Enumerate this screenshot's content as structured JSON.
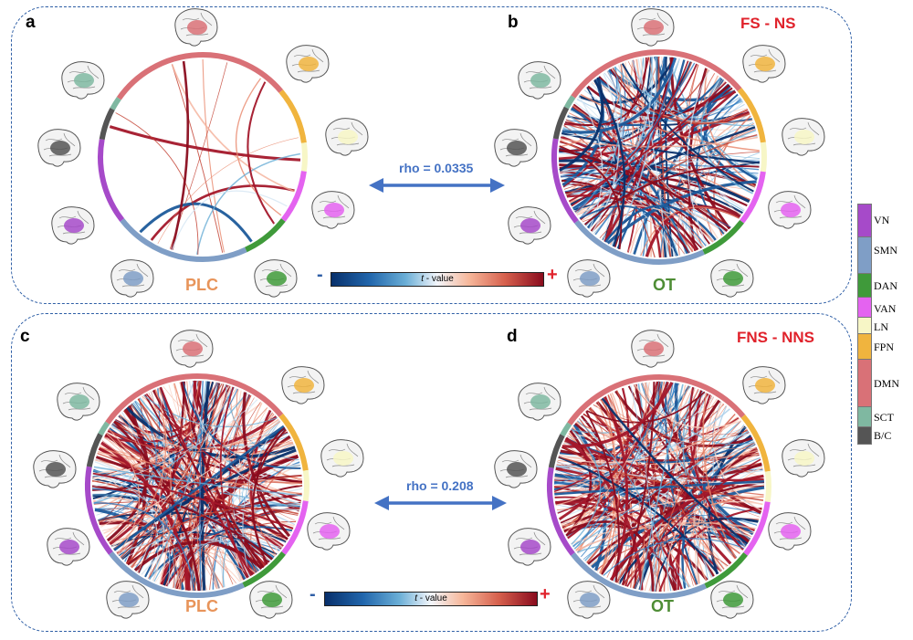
{
  "panels": [
    {
      "letter": "a",
      "group": "PLC",
      "group_color": "#e8945a"
    },
    {
      "letter": "b",
      "group": "OT",
      "group_color": "#4e8d35",
      "title": "FS - NS"
    },
    {
      "letter": "c",
      "group": "PLC",
      "group_color": "#e8945a"
    },
    {
      "letter": "d",
      "group": "OT",
      "group_color": "#4e8d35",
      "title": "FNS - NNS"
    }
  ],
  "correlations": {
    "top": "rho = 0.0335",
    "bottom": "rho = 0.208"
  },
  "colorbar": {
    "label_italic": "t",
    "label_rest": " - value",
    "minus": "-",
    "plus": "+",
    "minus_color": "#2f5fa6",
    "plus_color": "#e0222b"
  },
  "networks": [
    {
      "name": "VN",
      "color": "#a64ac9"
    },
    {
      "name": "SMN",
      "color": "#7f9ec6"
    },
    {
      "name": "DAN",
      "color": "#3f9a3a"
    },
    {
      "name": "VAN",
      "color": "#e463f0"
    },
    {
      "name": "LN",
      "color": "#f7f6c6"
    },
    {
      "name": "FPN",
      "color": "#f0b43e"
    },
    {
      "name": "DMN",
      "color": "#d97177"
    },
    {
      "name": "SCT",
      "color": "#7fb8a1"
    },
    {
      "name": "B/C",
      "color": "#555555"
    }
  ]
}
